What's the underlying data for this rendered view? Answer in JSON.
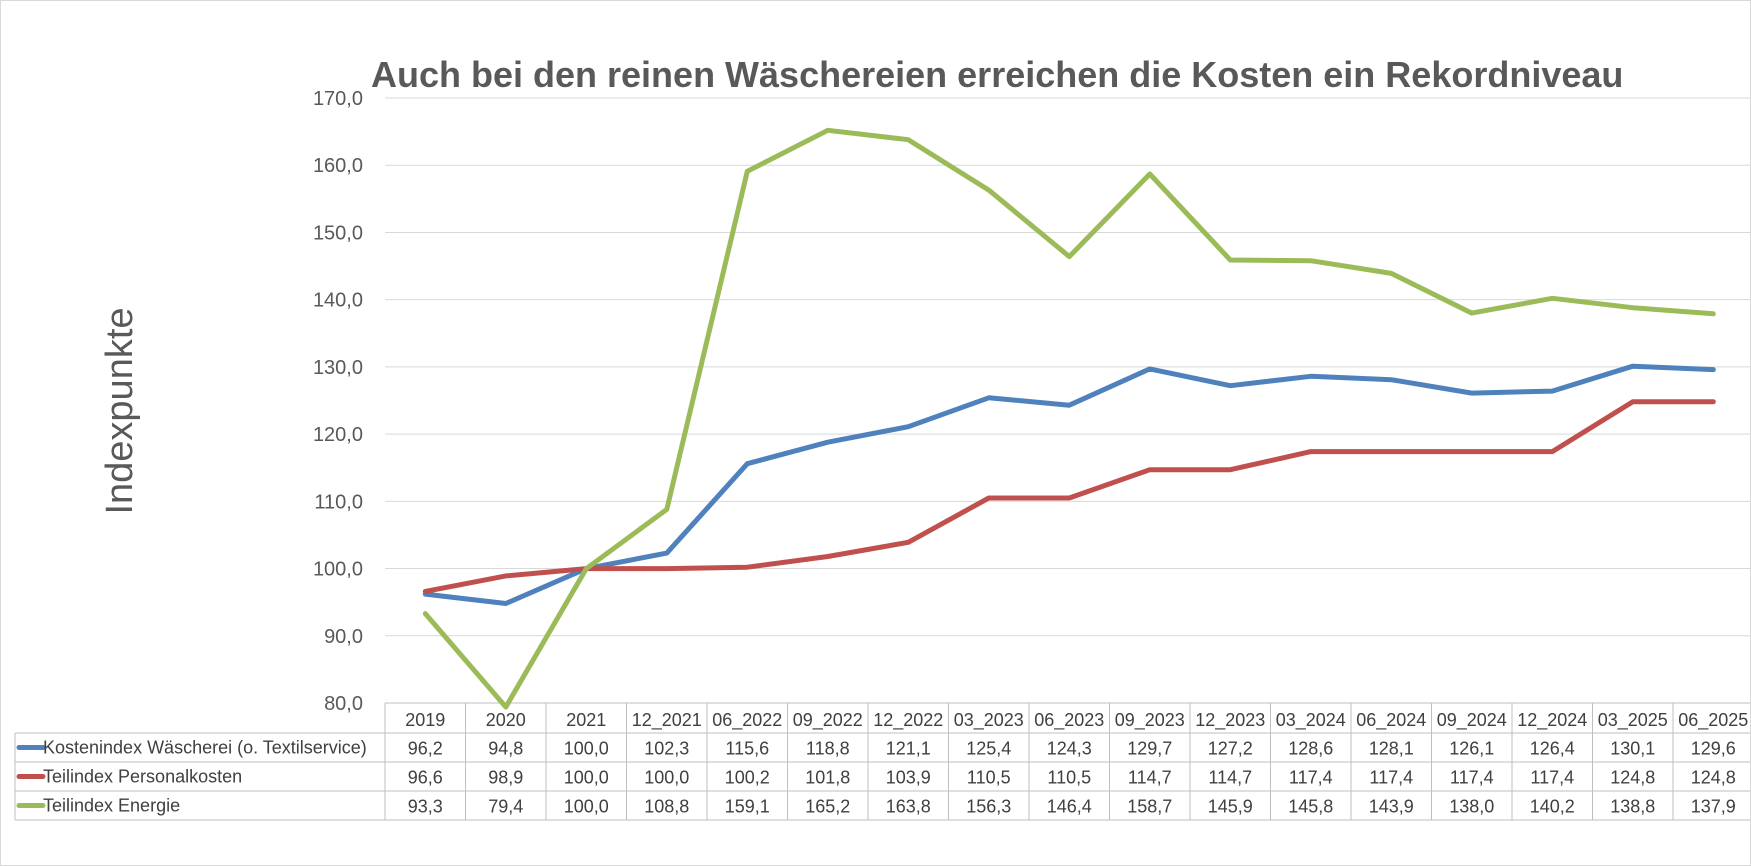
{
  "chart_data": {
    "type": "line",
    "title": "Auch bei den reinen Wäschereien erreichen die Kosten ein Rekordniveau",
    "ylabel": "Indexpunkte",
    "xlabel": "",
    "ylim": [
      80,
      170
    ],
    "ytick_labels": [
      "80,0",
      "90,0",
      "100,0",
      "110,0",
      "120,0",
      "130,0",
      "140,0",
      "150,0",
      "160,0",
      "170,0"
    ],
    "grid": true,
    "legend": "data-table-left",
    "categories": [
      "2019",
      "2020",
      "2021",
      "12_2021",
      "06_2022",
      "09_2022",
      "12_2022",
      "03_2023",
      "06_2023",
      "09_2023",
      "12_2023",
      "03_2024",
      "06_2024",
      "09_2024",
      "12_2024",
      "03_2025",
      "06_2025"
    ],
    "series": [
      {
        "name": "Kostenindex Wäscherei (o. Textilservice)",
        "color": "#4f81bd",
        "values": [
          96.2,
          94.8,
          100.0,
          102.3,
          115.6,
          118.8,
          121.1,
          125.4,
          124.3,
          129.7,
          127.2,
          128.6,
          128.1,
          126.1,
          126.4,
          130.1,
          129.6
        ],
        "labels": [
          "96,2",
          "94,8",
          "100,0",
          "102,3",
          "115,6",
          "118,8",
          "121,1",
          "125,4",
          "124,3",
          "129,7",
          "127,2",
          "128,6",
          "128,1",
          "126,1",
          "126,4",
          "130,1",
          "129,6"
        ]
      },
      {
        "name": "Teilindex Personalkosten",
        "color": "#c0504d",
        "values": [
          96.6,
          98.9,
          100.0,
          100.0,
          100.2,
          101.8,
          103.9,
          110.5,
          110.5,
          114.7,
          114.7,
          117.4,
          117.4,
          117.4,
          117.4,
          124.8,
          124.8
        ],
        "labels": [
          "96,6",
          "98,9",
          "100,0",
          "100,0",
          "100,2",
          "101,8",
          "103,9",
          "110,5",
          "110,5",
          "114,7",
          "114,7",
          "117,4",
          "117,4",
          "117,4",
          "117,4",
          "124,8",
          "124,8"
        ]
      },
      {
        "name": "Teilindex Energie",
        "color": "#9bbb59",
        "values": [
          93.3,
          79.4,
          100.0,
          108.8,
          159.1,
          165.2,
          163.8,
          156.3,
          146.4,
          158.7,
          145.9,
          145.8,
          143.9,
          138.0,
          140.2,
          138.8,
          137.9
        ],
        "labels": [
          "93,3",
          "79,4",
          "100,0",
          "108,8",
          "159,1",
          "165,2",
          "163,8",
          "156,3",
          "146,4",
          "158,7",
          "145,9",
          "145,8",
          "143,9",
          "138,0",
          "140,2",
          "138,8",
          "137,9"
        ]
      }
    ]
  }
}
